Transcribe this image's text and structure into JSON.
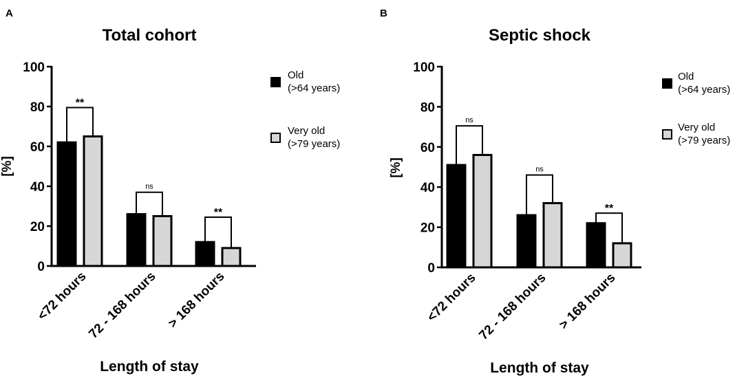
{
  "colors": {
    "old": "#000000",
    "very_old": "#d6d6d6",
    "axis": "#000000"
  },
  "chart_data": [
    {
      "type": "bar",
      "panel_letter": "A",
      "title": "Total cohort",
      "xlabel": "Length of stay",
      "ylabel": "[%]",
      "ylim": [
        0,
        100
      ],
      "yticks": [
        0,
        20,
        40,
        60,
        80,
        100
      ],
      "categories": [
        "<72 hours",
        "72 - 168 hours",
        "> 168 hours"
      ],
      "series": [
        {
          "name": "Old (>64 years)",
          "values": [
            62,
            26,
            12
          ]
        },
        {
          "name": "Very old (>79 years)",
          "values": [
            65,
            25,
            9
          ]
        }
      ],
      "significance": [
        {
          "label": "**",
          "bracket_value": 79.5
        },
        {
          "label": "ns",
          "bracket_value": 37
        },
        {
          "label": "**",
          "bracket_value": 24.5
        }
      ],
      "legend": [
        {
          "line1": "Old",
          "line2": "(>64 years)"
        },
        {
          "line1": "Very old",
          "line2": "(>79 years)"
        }
      ]
    },
    {
      "type": "bar",
      "panel_letter": "B",
      "title": "Septic shock",
      "xlabel": "Length of stay",
      "ylabel": "[%]",
      "ylim": [
        0,
        100
      ],
      "yticks": [
        0,
        20,
        40,
        60,
        80,
        100
      ],
      "categories": [
        "<72 hours",
        "72 - 168 hours",
        "> 168 hours"
      ],
      "series": [
        {
          "name": "Old (>64 years)",
          "values": [
            51,
            26,
            22
          ]
        },
        {
          "name": "Very old (>79 years)",
          "values": [
            56,
            32,
            12
          ]
        }
      ],
      "significance": [
        {
          "label": "ns",
          "bracket_value": 70.5
        },
        {
          "label": "ns",
          "bracket_value": 46
        },
        {
          "label": "**",
          "bracket_value": 27
        }
      ],
      "legend": [
        {
          "line1": "Old",
          "line2": "(>64 years)"
        },
        {
          "line1": "Very old",
          "line2": "(>79 years)"
        }
      ]
    }
  ]
}
